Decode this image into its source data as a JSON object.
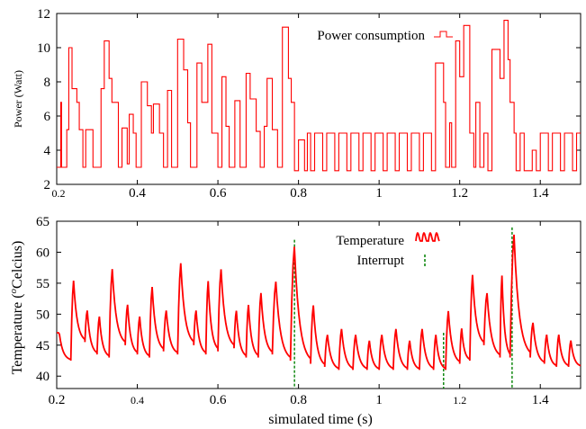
{
  "chart_data": [
    {
      "type": "line",
      "ylabel": "Power (Watt)",
      "xlim": [
        0.2,
        1.5
      ],
      "ylim": [
        2,
        12
      ],
      "xticks": [
        "0.2",
        "0.4",
        "0.6",
        "0.8",
        "1",
        "1.2",
        "1.4"
      ],
      "xtick_values": [
        0.2,
        0.4,
        0.6,
        0.8,
        1.0,
        1.2,
        1.4
      ],
      "yticks": [
        "2",
        "4",
        "6",
        "8",
        "10",
        "12"
      ],
      "ytick_values": [
        2,
        4,
        6,
        8,
        10,
        12
      ],
      "legend_position": "top-right",
      "series": [
        {
          "name": "Power consumption",
          "color": "#ff0000",
          "style": "step",
          "x": [
            0.2,
            0.21,
            0.21,
            0.212,
            0.212,
            0.225,
            0.225,
            0.23,
            0.23,
            0.238,
            0.238,
            0.25,
            0.25,
            0.256,
            0.256,
            0.265,
            0.265,
            0.272,
            0.272,
            0.29,
            0.29,
            0.31,
            0.31,
            0.318,
            0.318,
            0.33,
            0.33,
            0.337,
            0.337,
            0.345,
            0.345,
            0.353,
            0.353,
            0.362,
            0.362,
            0.375,
            0.375,
            0.38,
            0.38,
            0.39,
            0.39,
            0.397,
            0.397,
            0.41,
            0.41,
            0.425,
            0.425,
            0.435,
            0.435,
            0.44,
            0.44,
            0.455,
            0.455,
            0.465,
            0.465,
            0.475,
            0.475,
            0.485,
            0.485,
            0.5,
            0.5,
            0.515,
            0.515,
            0.525,
            0.525,
            0.532,
            0.532,
            0.548,
            0.548,
            0.56,
            0.56,
            0.575,
            0.575,
            0.585,
            0.585,
            0.6,
            0.6,
            0.61,
            0.61,
            0.62,
            0.62,
            0.628,
            0.628,
            0.642,
            0.642,
            0.655,
            0.655,
            0.67,
            0.67,
            0.68,
            0.68,
            0.695,
            0.695,
            0.705,
            0.705,
            0.715,
            0.715,
            0.722,
            0.722,
            0.735,
            0.735,
            0.748,
            0.748,
            0.76,
            0.76,
            0.775,
            0.775,
            0.782,
            0.782,
            0.79,
            0.79,
            0.8,
            0.8,
            0.815,
            0.815,
            0.822,
            0.822,
            0.83,
            0.83,
            0.84,
            0.84,
            0.86,
            0.86,
            0.87,
            0.87,
            0.89,
            0.89,
            0.9,
            0.9,
            0.92,
            0.92,
            0.93,
            0.93,
            0.95,
            0.95,
            0.96,
            0.96,
            0.98,
            0.98,
            0.99,
            0.99,
            1.01,
            1.01,
            1.02,
            1.02,
            1.04,
            1.04,
            1.05,
            1.05,
            1.07,
            1.07,
            1.08,
            1.08,
            1.1,
            1.1,
            1.11,
            1.11,
            1.13,
            1.13,
            1.14,
            1.14,
            1.16,
            1.16,
            1.165,
            1.165,
            1.175,
            1.175,
            1.18,
            1.18,
            1.19,
            1.19,
            1.2,
            1.2,
            1.21,
            1.21,
            1.225,
            1.225,
            1.235,
            1.235,
            1.24,
            1.24,
            1.25,
            1.25,
            1.26,
            1.26,
            1.27,
            1.27,
            1.28,
            1.28,
            1.3,
            1.3,
            1.31,
            1.31,
            1.32,
            1.32,
            1.325,
            1.325,
            1.335,
            1.335,
            1.34,
            1.34,
            1.35,
            1.35,
            1.36,
            1.36,
            1.38,
            1.38,
            1.39,
            1.39,
            1.4,
            1.4,
            1.42,
            1.42,
            1.43,
            1.43,
            1.45,
            1.45,
            1.46,
            1.46,
            1.48,
            1.48,
            1.49,
            1.49,
            1.5
          ],
          "y": [
            3,
            3,
            6.8,
            6.8,
            3,
            3,
            5.2,
            5.2,
            10,
            10,
            7.6,
            7.6,
            6.8,
            6.8,
            5.2,
            5.2,
            3,
            3,
            5.2,
            5.2,
            3,
            3,
            7.6,
            7.6,
            10.4,
            10.4,
            8.2,
            8.2,
            6.8,
            6.8,
            6.8,
            6.8,
            3,
            3,
            5.3,
            5.3,
            3.2,
            3.2,
            6.1,
            6.1,
            5,
            5,
            3,
            3,
            8,
            8,
            6.6,
            6.6,
            5,
            5,
            6.7,
            6.7,
            5,
            5,
            3,
            3,
            7.5,
            7.5,
            3,
            3,
            10.5,
            10.5,
            8.7,
            8.7,
            5.6,
            5.6,
            3,
            3,
            9.1,
            9.1,
            6.8,
            6.8,
            10.2,
            10.2,
            5,
            5,
            3,
            3,
            8.3,
            8.3,
            5.4,
            5.4,
            3,
            3,
            6.9,
            6.9,
            3,
            3,
            8.5,
            8.5,
            7,
            7,
            5.1,
            5.1,
            3,
            3,
            5.4,
            5.4,
            8.2,
            8.2,
            5.2,
            5.2,
            3,
            3,
            11.2,
            11.2,
            8.2,
            8.2,
            6.8,
            6.8,
            2.8,
            2.8,
            4.6,
            4.6,
            2.8,
            2.8,
            5,
            5,
            2.8,
            2.8,
            5,
            5,
            2.8,
            2.8,
            5,
            5,
            2.8,
            2.8,
            5,
            5,
            2.8,
            2.8,
            5,
            5,
            2.8,
            2.8,
            5,
            5,
            2.8,
            2.8,
            5,
            5,
            2.8,
            2.8,
            5,
            5,
            2.8,
            2.8,
            5,
            5,
            2.8,
            2.8,
            5,
            5,
            2.8,
            2.8,
            5,
            5,
            2.8,
            2.8,
            9.1,
            9.1,
            6.8,
            6.8,
            3,
            3,
            5.6,
            5.6,
            3,
            3,
            10.4,
            10.4,
            8.3,
            8.3,
            11.3,
            11.3,
            5,
            5,
            3,
            3,
            6.8,
            6.8,
            3,
            3,
            5,
            5,
            2.8,
            2.8,
            9.9,
            9.9,
            8.2,
            8.2,
            11.6,
            11.6,
            9.3,
            9.3,
            6.8,
            6.8,
            5,
            5,
            2.8,
            2.8,
            5,
            5,
            2.8,
            2.8,
            4,
            4,
            2.8,
            2.8,
            5,
            5,
            2.8,
            2.8,
            5,
            5,
            2.8,
            2.8,
            5,
            5,
            2.8,
            2.8,
            5,
            5
          ]
        }
      ]
    },
    {
      "type": "line",
      "xlabel": "simulated time (s)",
      "ylabel": "Temperature (°Celcius)",
      "ylabel_super": "o",
      "ylabel_prefix": "Temperature (",
      "ylabel_suffix": "Celcius)",
      "xlim": [
        0.2,
        1.5
      ],
      "ylim": [
        38,
        65
      ],
      "xticks": [
        "0.2",
        "0.4",
        "0.6",
        "0.8",
        "1",
        "1.2",
        "1.4"
      ],
      "xtick_values": [
        0.2,
        0.4,
        0.6,
        0.8,
        1.0,
        1.2,
        1.4
      ],
      "yticks": [
        "40",
        "45",
        "50",
        "55",
        "60",
        "65"
      ],
      "ytick_values": [
        40,
        45,
        50,
        55,
        60,
        65
      ],
      "legend_position": "top-right",
      "series": [
        {
          "name": "Temperature",
          "color": "#ff0000",
          "bursts": [
            {
              "x0": 0.2,
              "x1": 0.235,
              "peak": 47,
              "base": 42.5
            },
            {
              "x0": 0.235,
              "x1": 0.27,
              "peak": 56,
              "base": 45.5
            },
            {
              "x0": 0.27,
              "x1": 0.3,
              "peak": 51,
              "base": 43.5
            },
            {
              "x0": 0.3,
              "x1": 0.33,
              "peak": 50,
              "base": 43
            },
            {
              "x0": 0.33,
              "x1": 0.37,
              "peak": 58,
              "base": 45
            },
            {
              "x0": 0.37,
              "x1": 0.4,
              "peak": 52,
              "base": 43.5
            },
            {
              "x0": 0.4,
              "x1": 0.43,
              "peak": 50,
              "base": 43
            },
            {
              "x0": 0.43,
              "x1": 0.465,
              "peak": 55,
              "base": 44
            },
            {
              "x0": 0.465,
              "x1": 0.5,
              "peak": 51,
              "base": 43.5
            },
            {
              "x0": 0.5,
              "x1": 0.54,
              "peak": 59,
              "base": 45
            },
            {
              "x0": 0.54,
              "x1": 0.57,
              "peak": 51,
              "base": 43.5
            },
            {
              "x0": 0.57,
              "x1": 0.6,
              "peak": 56,
              "base": 44
            },
            {
              "x0": 0.6,
              "x1": 0.64,
              "peak": 58,
              "base": 44.5
            },
            {
              "x0": 0.64,
              "x1": 0.67,
              "peak": 51,
              "base": 43
            },
            {
              "x0": 0.67,
              "x1": 0.7,
              "peak": 52,
              "base": 43
            },
            {
              "x0": 0.7,
              "x1": 0.735,
              "peak": 54,
              "base": 43.5
            },
            {
              "x0": 0.735,
              "x1": 0.78,
              "peak": 56,
              "base": 42.5
            },
            {
              "x0": 0.78,
              "x1": 0.83,
              "peak": 62,
              "base": 42
            },
            {
              "x0": 0.83,
              "x1": 0.865,
              "peak": 52,
              "base": 41.5
            },
            {
              "x0": 0.865,
              "x1": 0.9,
              "peak": 47,
              "base": 41
            },
            {
              "x0": 0.9,
              "x1": 0.935,
              "peak": 48,
              "base": 41
            },
            {
              "x0": 0.935,
              "x1": 0.97,
              "peak": 47,
              "base": 41
            },
            {
              "x0": 0.97,
              "x1": 1.0,
              "peak": 46,
              "base": 41
            },
            {
              "x0": 1.0,
              "x1": 1.035,
              "peak": 47,
              "base": 41
            },
            {
              "x0": 1.035,
              "x1": 1.07,
              "peak": 48,
              "base": 41
            },
            {
              "x0": 1.07,
              "x1": 1.1,
              "peak": 46,
              "base": 41
            },
            {
              "x0": 1.1,
              "x1": 1.135,
              "peak": 48,
              "base": 41
            },
            {
              "x0": 1.135,
              "x1": 1.165,
              "peak": 47,
              "base": 41
            },
            {
              "x0": 1.165,
              "x1": 1.2,
              "peak": 51,
              "base": 42
            },
            {
              "x0": 1.2,
              "x1": 1.225,
              "peak": 48,
              "base": 42.5
            },
            {
              "x0": 1.225,
              "x1": 1.26,
              "peak": 57,
              "base": 45
            },
            {
              "x0": 1.26,
              "x1": 1.3,
              "peak": 54,
              "base": 43
            },
            {
              "x0": 1.3,
              "x1": 1.325,
              "peak": 57,
              "base": 43
            },
            {
              "x0": 1.325,
              "x1": 1.375,
              "peak": 64,
              "base": 43
            },
            {
              "x0": 1.375,
              "x1": 1.41,
              "peak": 49,
              "base": 42
            },
            {
              "x0": 1.41,
              "x1": 1.44,
              "peak": 47,
              "base": 41.5
            },
            {
              "x0": 1.44,
              "x1": 1.47,
              "peak": 47,
              "base": 41.5
            },
            {
              "x0": 1.47,
              "x1": 1.5,
              "peak": 46,
              "base": 41.5
            }
          ]
        },
        {
          "name": "Interrupt",
          "color": "#008000",
          "style": "dashed",
          "x": [
            0.79,
            1.16,
            1.33
          ]
        }
      ]
    }
  ]
}
